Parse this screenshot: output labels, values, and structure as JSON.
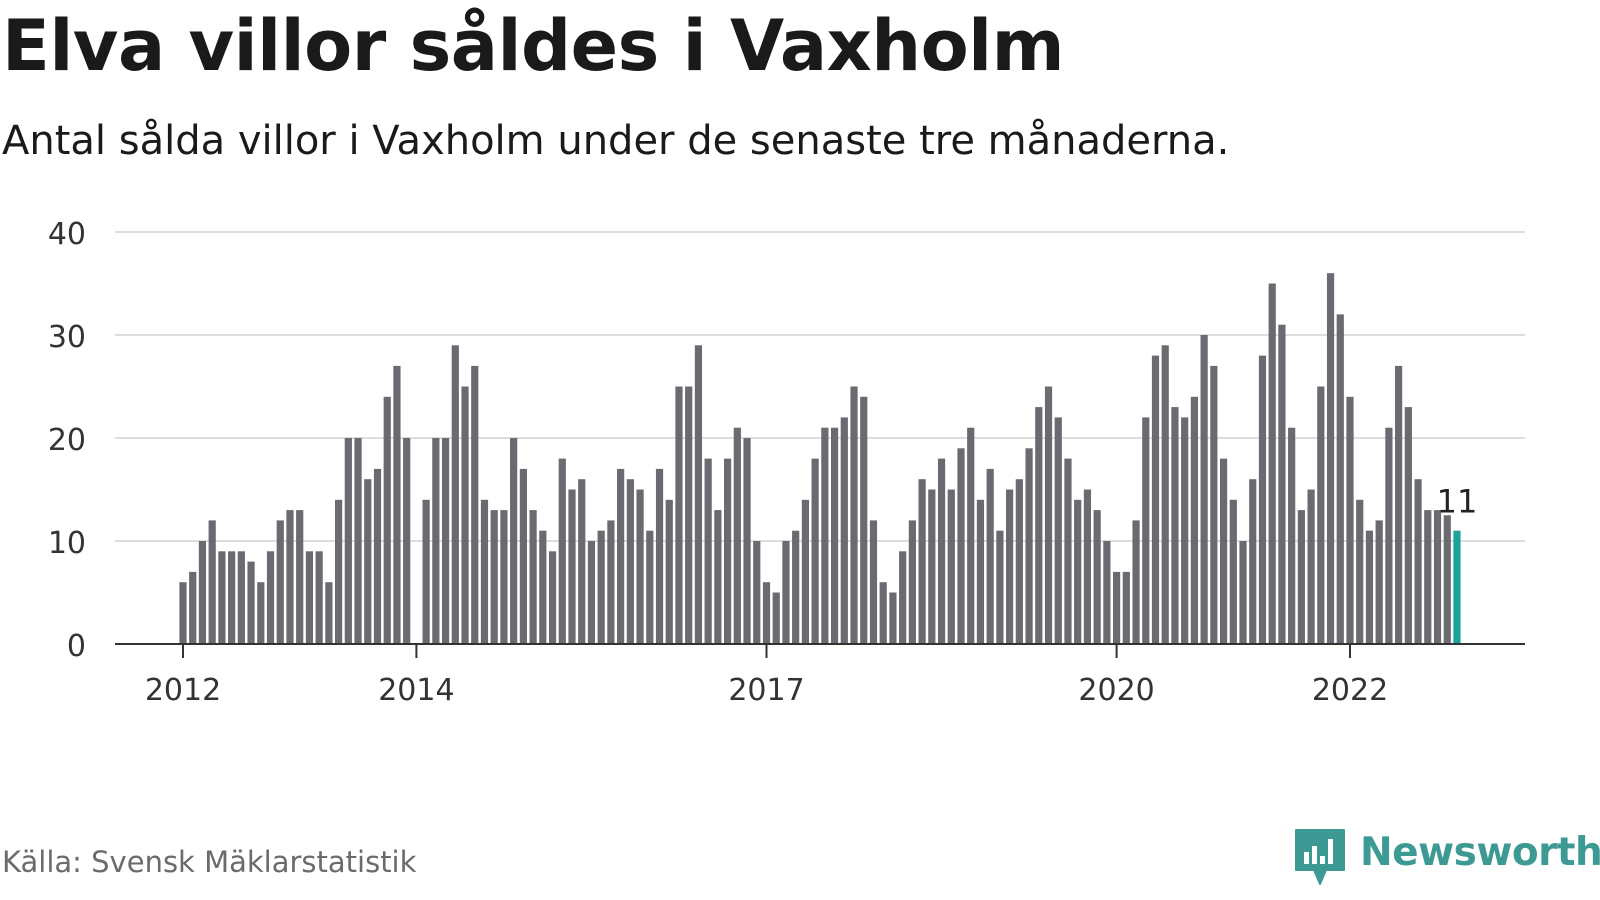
{
  "title": "Elva villor såldes i Vaxholm",
  "subtitle": "Antal sålda villor i Vaxholm under de senaste tre månaderna.",
  "source": "Källa: Svensk Mäklarstatistik",
  "brand": {
    "name": "Newsworthy",
    "icon": "newsworthy-chat-bar-icon",
    "color": "#3d9993"
  },
  "colors": {
    "bar": "#6b6a70",
    "highlight": "#1ba39a",
    "grid": "#dddddd",
    "axis": "#333333",
    "text": "#333333"
  },
  "chart_data": {
    "type": "bar",
    "x_ticks": [
      {
        "label": "2012",
        "index": 0
      },
      {
        "label": "2014",
        "index": 24
      },
      {
        "label": "2017",
        "index": 60
      },
      {
        "label": "2020",
        "index": 96
      },
      {
        "label": "2022",
        "index": 120
      }
    ],
    "y_ticks": [
      0,
      10,
      20,
      30,
      40
    ],
    "ylim": [
      0,
      40
    ],
    "grid": true,
    "values": [
      6,
      7,
      10,
      12,
      9,
      9,
      9,
      8,
      6,
      9,
      12,
      13,
      13,
      9,
      9,
      6,
      14,
      20,
      20,
      16,
      17,
      24,
      27,
      20,
      0,
      14,
      20,
      20,
      29,
      25,
      27,
      14,
      13,
      13,
      20,
      17,
      13,
      11,
      9,
      18,
      15,
      16,
      10,
      11,
      12,
      17,
      16,
      15,
      11,
      17,
      14,
      25,
      25,
      29,
      18,
      13,
      18,
      21,
      20,
      10,
      6,
      5,
      10,
      11,
      14,
      18,
      21,
      21,
      22,
      25,
      24,
      12,
      6,
      5,
      9,
      12,
      16,
      15,
      18,
      15,
      19,
      21,
      14,
      17,
      11,
      15,
      16,
      19,
      23,
      25,
      22,
      18,
      14,
      15,
      13,
      10,
      7,
      7,
      12,
      22,
      28,
      29,
      23,
      22,
      24,
      30,
      27,
      18,
      14,
      10,
      16,
      28,
      35,
      31,
      21,
      13,
      15,
      25,
      36,
      32,
      24,
      14,
      11,
      12,
      21,
      27,
      23,
      16,
      13,
      13,
      12.5,
      11
    ],
    "highlight_index": 131,
    "highlight_label": "11"
  }
}
